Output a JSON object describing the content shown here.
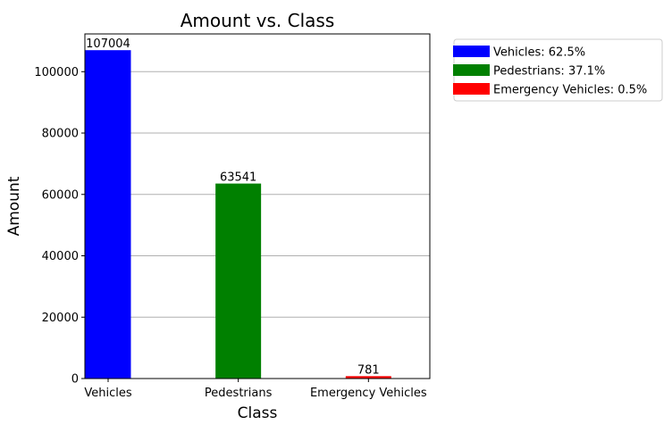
{
  "chart_data": {
    "type": "bar",
    "title": "Amount vs. Class",
    "xlabel": "Class",
    "ylabel": "Amount",
    "categories": [
      "Vehicles",
      "Pedestrians",
      "Emergency Vehicles"
    ],
    "values": [
      107004,
      63541,
      781
    ],
    "value_labels": [
      "107004",
      "63541",
      "781"
    ],
    "colors": [
      "#0000ff",
      "#008000",
      "#ff0000"
    ],
    "ylim": [
      0,
      112300
    ],
    "yticks": [
      0,
      20000,
      40000,
      60000,
      80000,
      100000
    ],
    "ytick_labels": [
      "0",
      "20000",
      "40000",
      "60000",
      "80000",
      "100000"
    ],
    "grid": "horizontal",
    "legend": {
      "placement": "outside-top-right",
      "entries": [
        "Vehicles: 62.5%",
        "Pedestrians: 37.1%",
        "Emergency Vehicles: 0.5%"
      ]
    }
  }
}
